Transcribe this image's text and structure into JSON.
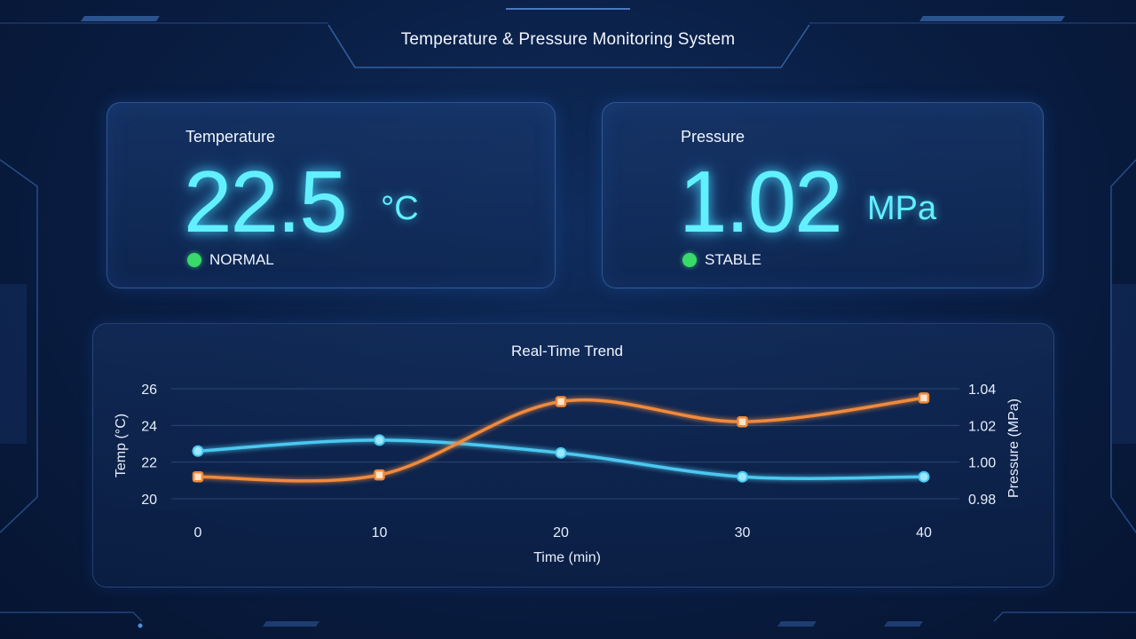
{
  "header": {
    "title": "Temperature & Pressure Monitoring System"
  },
  "temperature_card": {
    "label": "Temperature",
    "value": "22.5",
    "unit": "°C",
    "status": "NORMAL",
    "status_color": "#39d96a"
  },
  "pressure_card": {
    "label": "Pressure",
    "value": "1.02",
    "unit": "MPa",
    "status": "STABLE",
    "status_color": "#39d96a"
  },
  "colors": {
    "accent": "#62f0ff",
    "temp_line": "#4cc8f0",
    "pressure_line": "#f08a3c",
    "background": "#0a1f45"
  },
  "chart_data": {
    "type": "line",
    "title": "Real-Time Trend",
    "xlabel": "Time (min)",
    "ylabel": "Temp (°C)",
    "y2label": "Pressure (MPa)",
    "x": [
      0,
      10,
      20,
      30,
      40
    ],
    "xlim": [
      0,
      40
    ],
    "ylim": [
      20,
      26
    ],
    "y2lim": [
      0.98,
      1.04
    ],
    "yticks": [
      "20",
      "22",
      "24",
      "26"
    ],
    "y2ticks": [
      "0.98",
      "1.00",
      "1.02",
      "1.04"
    ],
    "xticks": [
      "0",
      "10",
      "20",
      "30",
      "40"
    ],
    "grid": true,
    "series": [
      {
        "axis": "left",
        "color": "#4cc8f0",
        "marker": "circle",
        "x": [
          0,
          10,
          20,
          30,
          40
        ],
        "values": [
          22.6,
          23.2,
          22.5,
          21.2,
          21.2
        ]
      },
      {
        "axis": "right",
        "color": "#f08a3c",
        "marker": "square",
        "x": [
          0,
          10,
          20,
          30,
          40
        ],
        "values": [
          0.992,
          0.993,
          1.033,
          1.022,
          1.035
        ]
      }
    ]
  }
}
